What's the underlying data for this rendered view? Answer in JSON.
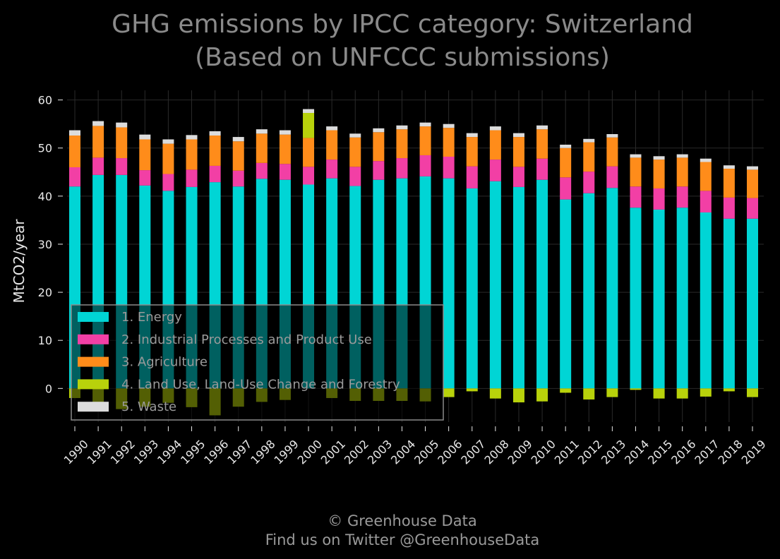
{
  "chart_data": {
    "type": "bar",
    "stacked": true,
    "title": [
      "GHG emissions by IPCC category: Switzerland",
      "(Based on UNFCCC submissions)"
    ],
    "ylabel": "MtCO2/year",
    "xlabel": "",
    "ylim": [
      -7,
      62
    ],
    "yticks": [
      0,
      10,
      20,
      30,
      40,
      50,
      60
    ],
    "grid": true,
    "legend_position": "lower-left",
    "categories": [
      "1990",
      "1991",
      "1992",
      "1993",
      "1994",
      "1995",
      "1996",
      "1997",
      "1998",
      "1999",
      "2000",
      "2001",
      "2002",
      "2003",
      "2004",
      "2005",
      "2006",
      "2007",
      "2008",
      "2009",
      "2010",
      "2011",
      "2012",
      "2013",
      "2014",
      "2015",
      "2016",
      "2017",
      "2018",
      "2019"
    ],
    "series": [
      {
        "name": "1. Energy",
        "color": "#00d5d5",
        "values": [
          42.0,
          44.4,
          44.4,
          42.2,
          41.1,
          41.9,
          42.9,
          42.0,
          43.6,
          43.4,
          42.4,
          43.7,
          42.1,
          43.4,
          43.7,
          44.1,
          43.7,
          41.6,
          43.1,
          41.9,
          43.4,
          39.3,
          40.6,
          41.7,
          37.6,
          37.2,
          37.6,
          36.6,
          35.3,
          35.3
        ]
      },
      {
        "name": "2. Industrial Processes and Product Use",
        "color": "#f23fa5",
        "values": [
          4.0,
          3.6,
          3.5,
          3.2,
          3.5,
          3.6,
          3.4,
          3.3,
          3.3,
          3.3,
          3.7,
          3.9,
          4.0,
          3.9,
          4.2,
          4.4,
          4.5,
          4.6,
          4.5,
          4.2,
          4.4,
          4.6,
          4.5,
          4.5,
          4.4,
          4.4,
          4.4,
          4.5,
          4.4,
          4.3
        ]
      },
      {
        "name": "3. Agriculture",
        "color": "#ff8c1a",
        "values": [
          6.6,
          6.6,
          6.4,
          6.4,
          6.3,
          6.3,
          6.3,
          6.1,
          6.1,
          6.1,
          6.0,
          6.1,
          6.1,
          6.0,
          6.0,
          6.0,
          6.0,
          6.1,
          6.1,
          6.2,
          6.1,
          6.1,
          6.1,
          6.0,
          6.0,
          6.0,
          6.0,
          6.0,
          6.0,
          5.9
        ]
      },
      {
        "name": "4. Land Use, Land-Use Change and Forestry",
        "color": "#b8d20b",
        "values": [
          -2.0,
          -3.0,
          -4.3,
          -3.8,
          -3.0,
          -3.9,
          -5.6,
          -3.8,
          -2.8,
          -2.4,
          5.2,
          -2.0,
          -2.6,
          -2.6,
          -2.6,
          -2.7,
          -1.8,
          -0.6,
          -2.1,
          -2.9,
          -2.7,
          -0.9,
          -2.3,
          -1.8,
          -0.3,
          -2.1,
          -2.1,
          -1.7,
          -0.6,
          -1.8
        ]
      },
      {
        "name": "5. Waste",
        "color": "#dcdcdc",
        "values": [
          1.1,
          1.0,
          1.0,
          1.0,
          0.9,
          0.9,
          0.9,
          0.9,
          0.9,
          0.9,
          0.8,
          0.8,
          0.8,
          0.8,
          0.8,
          0.8,
          0.8,
          0.8,
          0.8,
          0.8,
          0.8,
          0.7,
          0.7,
          0.7,
          0.7,
          0.7,
          0.7,
          0.7,
          0.7,
          0.7
        ]
      }
    ]
  },
  "credits": {
    "line1": "© Greenhouse Data",
    "line2": "Find us on Twitter @GreenhouseData"
  }
}
